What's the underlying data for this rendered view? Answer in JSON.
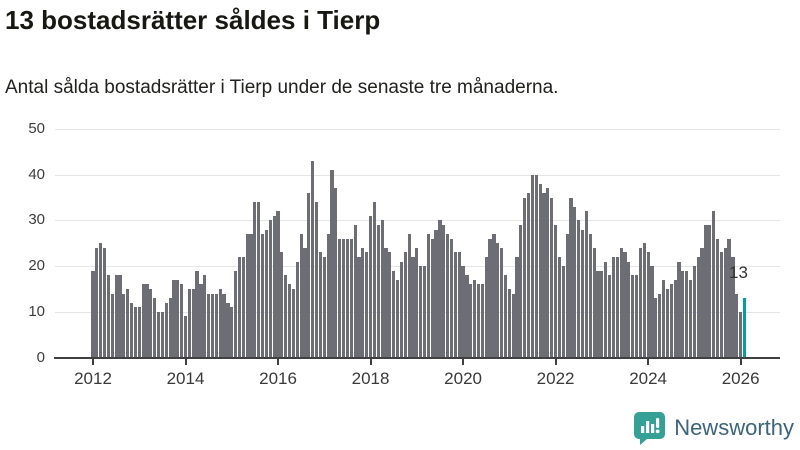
{
  "header": {
    "title": "13 bostadsrätter såldes i Tierp",
    "subtitle": "Antal sålda bostadsrätter i Tierp under de senaste tre månaderna."
  },
  "annotation": {
    "last_value_label": "13"
  },
  "footer": {
    "brand": "Newsworthy",
    "logo_icon": "bar-chart-speech-bubble-icon"
  },
  "colors": {
    "bar": "#6d6d75",
    "highlight": "#009fa1",
    "gridline": "#e5e5e5",
    "axis": "#404040",
    "logo_teal": "#35a096",
    "brand_text": "#3a647c"
  },
  "chart_data": {
    "type": "bar",
    "title": "13 bostadsrätter såldes i Tierp",
    "subtitle": "Antal sålda bostadsrätter i Tierp under de senaste tre månaderna.",
    "x_unit": "month",
    "x_start": "2012-01",
    "x_end": "2026-02",
    "ylim": [
      0,
      50
    ],
    "yticks": [
      0,
      10,
      20,
      30,
      40,
      50
    ],
    "xtick_years": [
      2012,
      2014,
      2016,
      2018,
      2020,
      2022,
      2024,
      2026
    ],
    "grid": "horizontal",
    "legend": "none",
    "highlight_index": 169,
    "highlight_label": "13",
    "values": [
      19,
      24,
      25,
      24,
      18,
      14,
      18,
      18,
      14,
      15,
      12,
      11,
      11,
      16,
      16,
      15,
      13,
      10,
      10,
      12,
      13,
      17,
      17,
      16,
      9,
      15,
      15,
      19,
      16,
      18,
      14,
      14,
      14,
      15,
      14,
      12,
      11,
      19,
      22,
      22,
      27,
      27,
      34,
      34,
      27,
      28,
      30,
      31,
      32,
      23,
      18,
      16,
      15,
      21,
      27,
      24,
      36,
      43,
      34,
      23,
      22,
      27,
      41,
      37,
      26,
      26,
      26,
      26,
      29,
      22,
      24,
      23,
      31,
      34,
      29,
      30,
      24,
      23,
      19,
      17,
      21,
      23,
      27,
      22,
      24,
      20,
      20,
      27,
      26,
      28,
      30,
      29,
      27,
      26,
      23,
      23,
      20,
      18,
      16,
      17,
      16,
      16,
      22,
      26,
      27,
      25,
      24,
      18,
      15,
      14,
      22,
      29,
      35,
      36,
      40,
      40,
      38,
      36,
      37,
      35,
      29,
      22,
      20,
      27,
      35,
      33,
      30,
      28,
      32,
      27,
      24,
      19,
      19,
      21,
      18,
      22,
      22,
      24,
      23,
      21,
      18,
      18,
      24,
      25,
      23,
      20,
      13,
      14,
      17,
      15,
      16,
      17,
      21,
      19,
      19,
      17,
      20,
      22,
      24,
      29,
      29,
      32,
      26,
      23,
      24,
      26,
      22,
      14,
      10,
      13
    ]
  }
}
